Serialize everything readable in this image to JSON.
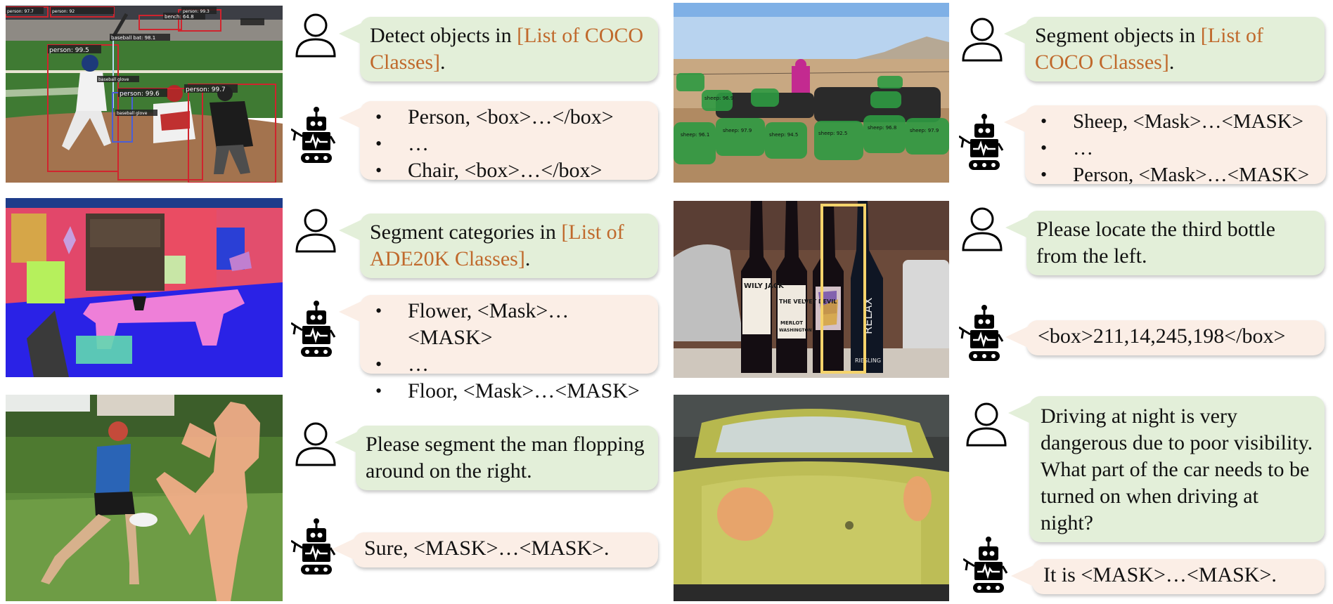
{
  "rows": [
    {
      "left": {
        "user": {
          "text": "Detect objects in ",
          "highlight": "[List of COCO Classes]",
          "suffix": "."
        },
        "bot": {
          "items": [
            "Person, <box>…</box>",
            "…",
            "Chair, <box>…</box>"
          ]
        }
      },
      "right": {
        "user": {
          "text": "Segment objects in ",
          "highlight": "[List of COCO Classes]",
          "suffix": "."
        },
        "bot": {
          "items": [
            "Sheep, <Mask>…<MASK>",
            "…",
            "Person, <Mask>…<MASK>"
          ]
        }
      }
    },
    {
      "left": {
        "user": {
          "text": "Segment categories in ",
          "highlight": "[List of ADE20K Classes]",
          "suffix": "."
        },
        "bot": {
          "items": [
            "Flower, <Mask>…<MASK>",
            "…",
            "Floor, <Mask>…<MASK>"
          ]
        }
      },
      "right": {
        "user": {
          "text": "Please locate the third bottle from the left."
        },
        "bot": {
          "text": "<box>211,14,245,198</box>"
        }
      }
    },
    {
      "left": {
        "user": {
          "text": "Please segment the man flopping around on the right."
        },
        "bot": {
          "text": "Sure, <MASK>…<MASK>."
        }
      },
      "right": {
        "user": {
          "text": "Driving at night is very dangerous due to poor visibility. What part of the car needs to be turned on when driving at night?"
        },
        "bot": {
          "text": "It is <MASK>…<MASK>."
        }
      }
    }
  ],
  "image_labels": {
    "baseball": {
      "persons": [
        "person: 99.5",
        "person: 99.6",
        "person: 99.7"
      ],
      "gloves": [
        "baseball glove",
        "baseball glove"
      ],
      "bat": "baseball bat: 98.1",
      "bench": "bench: 64.8",
      "top_tags": [
        "person: 97.7",
        "person: 92",
        "person: 99.3",
        "person: 97.7",
        "person: 99.3"
      ]
    },
    "sheep_tags": [
      "sheep: 96.1",
      "sheep: 97.9",
      "sheep: 94.5",
      "sheep: 92.5",
      "sheep: 96.8",
      "sheep: 97.9",
      "sheep: 96.9"
    ],
    "wine_labels": [
      "WILY JACK",
      "THE VELVET DEVIL",
      "MERLOT",
      "WASHINGTON",
      "RELAX",
      "RIESLING"
    ]
  },
  "colors": {
    "user_bubble": "#e3efd9",
    "bot_bubble": "#fbeee6",
    "highlight": "#c0692c",
    "detection_box": "#d0242e",
    "bottle_box": "#f5d36b"
  }
}
